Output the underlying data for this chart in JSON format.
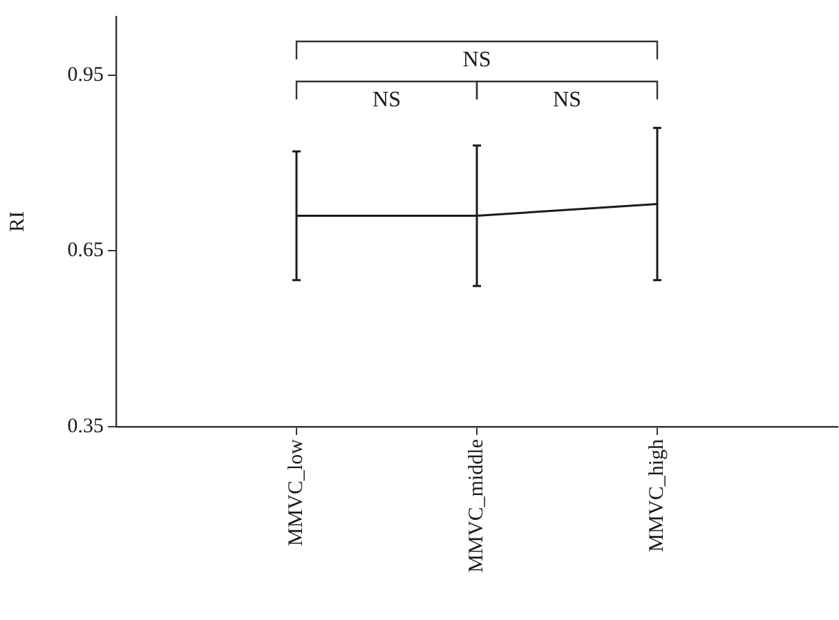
{
  "chart_data": {
    "type": "line",
    "ylabel": "RI",
    "categories": [
      "MMVC_low",
      "MMVC_middle",
      "MMVC_high"
    ],
    "series": [
      {
        "color": "#1a1a1a",
        "values": [
          0.71,
          0.71,
          0.73
        ],
        "errors": [
          [
            0.6,
            0.82
          ],
          [
            0.59,
            0.83
          ],
          [
            0.6,
            0.86
          ]
        ]
      }
    ],
    "ylim": [
      0.35,
      1.05
    ],
    "yticks": [
      0.35,
      0.65,
      0.95
    ],
    "grid": false,
    "legend": false,
    "marker": "none",
    "line_style": "solid",
    "annotations": [
      "NS",
      "NS",
      "NS"
    ]
  }
}
